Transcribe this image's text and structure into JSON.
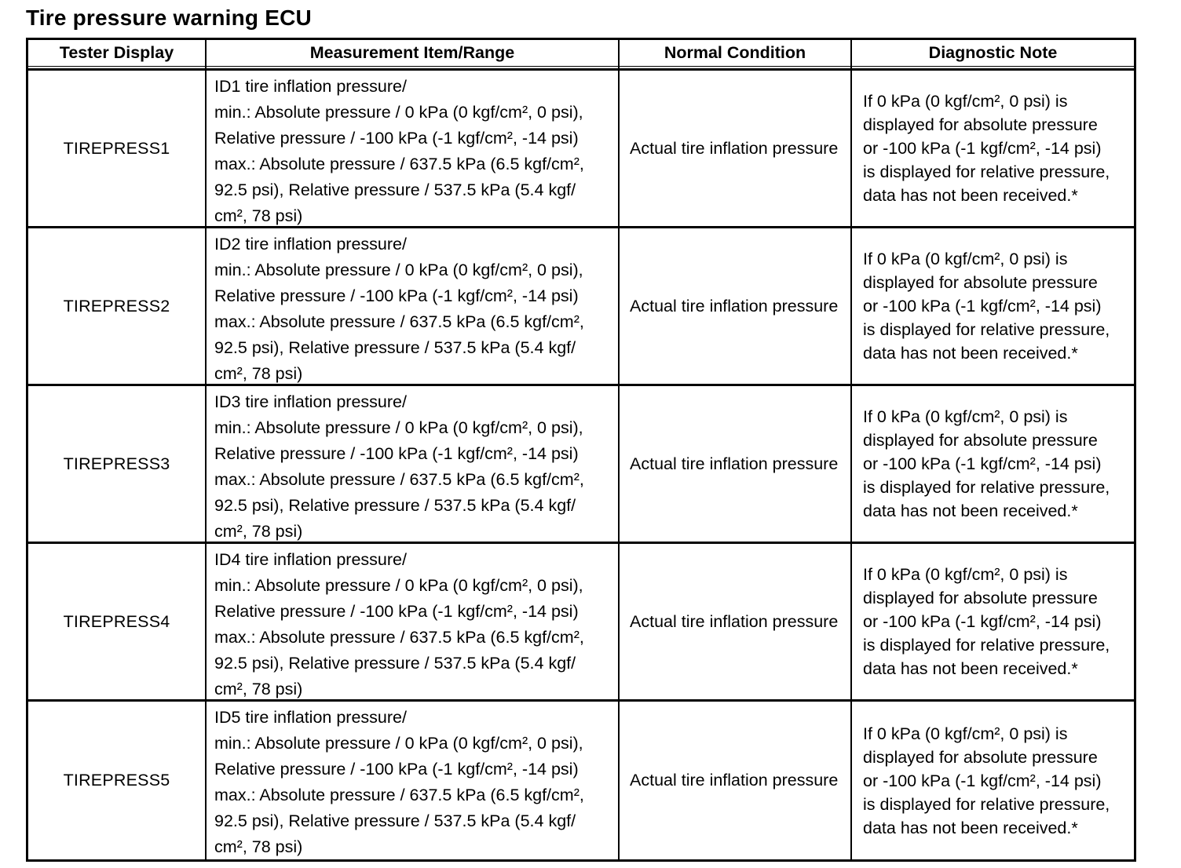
{
  "page": {
    "title": "Tire pressure warning ECU"
  },
  "table": {
    "headers": [
      "Tester Display",
      "Measurement Item/Range",
      "Normal Condition",
      "Diagnostic Note"
    ],
    "rows": [
      {
        "tester_display": "TIREPRESS1",
        "measurement_item_range": "ID1 tire inflation pressure/\nmin.: Absolute pressure / 0 kPa (0 kgf/cm², 0 psi),\nRelative pressure / -100 kPa (-1 kgf/cm², -14 psi)\nmax.: Absolute pressure / 637.5 kPa (6.5 kgf/cm²,\n92.5 psi), Relative pressure / 537.5 kPa (5.4 kgf/\ncm², 78 psi)",
        "normal_condition": "Actual tire inflation pressure",
        "diagnostic_note": "If 0 kPa (0 kgf/cm², 0 psi) is\ndisplayed for absolute pressure\nor -100 kPa (-1 kgf/cm², -14 psi)\nis displayed for relative pressure,\ndata has not been received.*"
      },
      {
        "tester_display": "TIREPRESS2",
        "measurement_item_range": "ID2 tire inflation pressure/\nmin.: Absolute pressure / 0 kPa (0 kgf/cm², 0 psi),\nRelative pressure / -100 kPa (-1 kgf/cm², -14 psi)\nmax.: Absolute pressure / 637.5 kPa (6.5 kgf/cm²,\n92.5 psi), Relative pressure / 537.5 kPa (5.4 kgf/\ncm², 78 psi)",
        "normal_condition": "Actual tire inflation pressure",
        "diagnostic_note": "If 0 kPa (0 kgf/cm², 0 psi) is\ndisplayed for absolute pressure\nor -100 kPa (-1 kgf/cm², -14 psi)\nis displayed for relative pressure,\ndata has not been received.*"
      },
      {
        "tester_display": "TIREPRESS3",
        "measurement_item_range": "ID3 tire inflation pressure/\nmin.: Absolute pressure / 0 kPa (0 kgf/cm², 0 psi),\nRelative pressure / -100 kPa (-1 kgf/cm², -14 psi)\nmax.: Absolute pressure / 637.5 kPa (6.5 kgf/cm²,\n92.5 psi), Relative pressure / 537.5 kPa (5.4 kgf/\ncm², 78 psi)",
        "normal_condition": "Actual tire inflation pressure",
        "diagnostic_note": "If 0 kPa (0 kgf/cm², 0 psi) is\ndisplayed for absolute pressure\nor -100 kPa (-1 kgf/cm², -14 psi)\nis displayed for relative pressure,\ndata has not been received.*"
      },
      {
        "tester_display": "TIREPRESS4",
        "measurement_item_range": "ID4 tire inflation pressure/\nmin.: Absolute pressure / 0 kPa (0 kgf/cm², 0 psi),\nRelative pressure / -100 kPa (-1 kgf/cm², -14 psi)\nmax.: Absolute pressure / 637.5 kPa (6.5 kgf/cm²,\n92.5 psi), Relative pressure / 537.5 kPa (5.4 kgf/\ncm², 78 psi)",
        "normal_condition": "Actual tire inflation pressure",
        "diagnostic_note": "If 0 kPa (0 kgf/cm², 0 psi) is\ndisplayed for absolute pressure\nor -100 kPa (-1 kgf/cm², -14 psi)\nis displayed for relative pressure,\ndata has not been received.*"
      },
      {
        "tester_display": "TIREPRESS5",
        "measurement_item_range": "ID5 tire inflation pressure/\nmin.: Absolute pressure / 0 kPa (0 kgf/cm², 0 psi),\nRelative pressure / -100 kPa (-1 kgf/cm², -14 psi)\nmax.: Absolute pressure / 637.5 kPa (6.5 kgf/cm²,\n92.5 psi), Relative pressure / 537.5 kPa (5.4 kgf/\ncm², 78 psi)",
        "normal_condition": "Actual tire inflation pressure",
        "diagnostic_note": "If 0 kPa (0 kgf/cm², 0 psi) is\ndisplayed for absolute pressure\nor -100 kPa (-1 kgf/cm², -14 psi)\nis displayed for relative pressure,\ndata has not been received.*"
      }
    ]
  }
}
